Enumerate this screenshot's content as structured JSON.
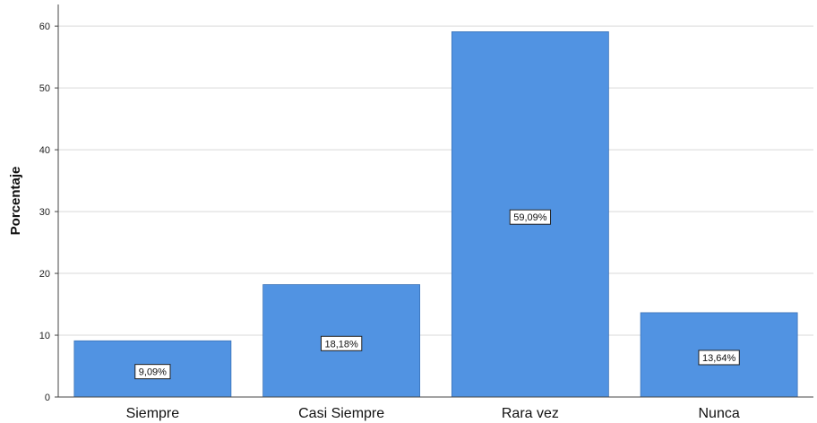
{
  "chart_data": {
    "type": "bar",
    "categories": [
      "Siempre",
      "Casi Siempre",
      "Rara vez",
      "Nunca"
    ],
    "values": [
      9.09,
      18.18,
      59.09,
      13.64
    ],
    "data_labels": [
      "9,09%",
      "18,18%",
      "59,09%",
      "13,64%"
    ],
    "title": "",
    "xlabel": "",
    "ylabel": "Porcentaje",
    "ylim": [
      0,
      60
    ],
    "yticks": [
      0,
      10,
      20,
      30,
      40,
      50,
      60
    ],
    "grid": true,
    "legend": "none",
    "colors": {
      "bar": "#5193e2",
      "bar_edge": "#3a72b8",
      "grid": "#d9d9d9",
      "axis": "#444444"
    }
  }
}
